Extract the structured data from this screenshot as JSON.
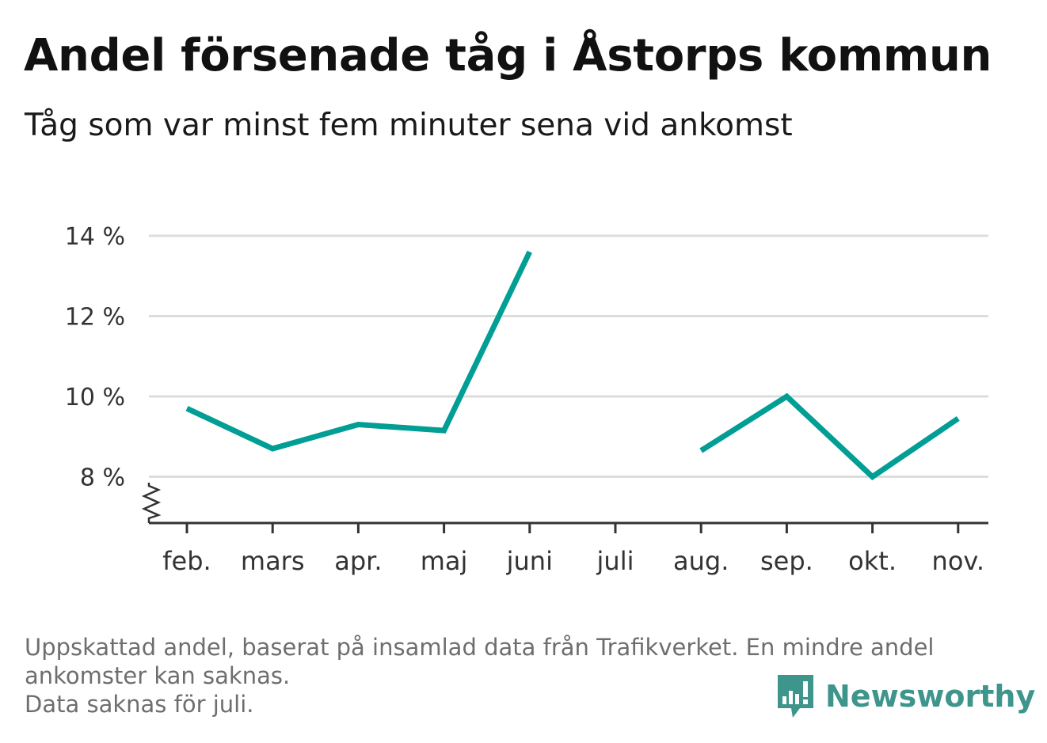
{
  "header": {
    "title": "Andel försenade tåg i Åstorps kommun",
    "subtitle": "Tåg som var minst fem minuter sena vid ankomst"
  },
  "chart_data": {
    "type": "line",
    "categories": [
      "feb.",
      "mars",
      "apr.",
      "maj",
      "juni",
      "juli",
      "aug.",
      "sep.",
      "okt.",
      "nov."
    ],
    "series": [
      {
        "values": [
          9.7,
          8.7,
          9.3,
          9.15,
          13.6,
          null,
          8.65,
          10.0,
          8.0,
          9.45
        ]
      }
    ],
    "yticks": [
      8,
      10,
      12,
      14
    ],
    "ytick_labels": [
      "8 %",
      "10 %",
      "12 %",
      "14 %"
    ],
    "ylim": [
      6.9,
      14
    ],
    "y_axis_broken": true,
    "grid": true,
    "line_color": "#009e94",
    "grid_color": "#dddddd",
    "axis_color": "#333333"
  },
  "footer": {
    "notes": [
      "Uppskattad andel, baserat på insamlad data från Trafikverket. En mindre andel",
      "ankomster kan saknas.",
      "Data saknas för juli."
    ],
    "brand": "Newsworthy",
    "brand_icon": "newsworthy-logo-icon",
    "brand_color": "#3e958c"
  }
}
